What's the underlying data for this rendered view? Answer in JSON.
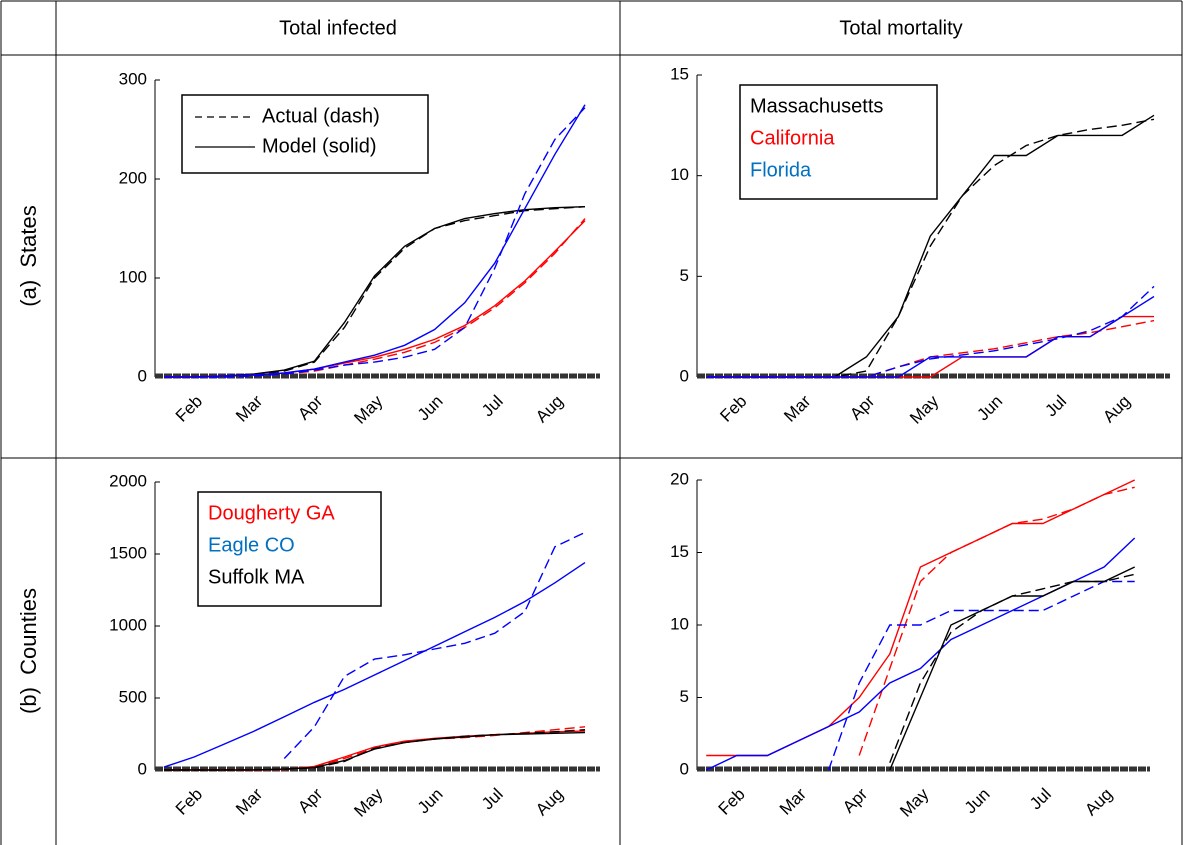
{
  "header": [
    "Total infected",
    "Total mortality"
  ],
  "rows": [
    "(a)  States",
    "(b)  Counties"
  ],
  "chart_data": [
    {
      "type": "line",
      "legend_loc": "upper left",
      "categories": [
        null,
        "Feb",
        null,
        "Mar",
        null,
        "Apr",
        null,
        "May",
        null,
        "Jun",
        null,
        "Jul",
        null,
        "Aug",
        null
      ],
      "ylim": [
        0,
        300
      ],
      "yticks": [
        0,
        100,
        200,
        300
      ],
      "legend": [
        {
          "label": "Actual (dash)",
          "dash": true
        },
        {
          "label": "Model (solid)",
          "dash": false
        }
      ],
      "series": [
        {
          "color": "#000000",
          "dash": true,
          "values": [
            0,
            0,
            1,
            2,
            6,
            15,
            50,
            100,
            130,
            150,
            158,
            163,
            168,
            170,
            172
          ]
        },
        {
          "color": "#000000",
          "dash": false,
          "values": [
            0,
            0,
            1,
            3,
            7,
            16,
            55,
            102,
            132,
            150,
            160,
            165,
            169,
            171,
            172
          ]
        },
        {
          "color": "#ff0000",
          "dash": true,
          "values": [
            0,
            0,
            0,
            1,
            3,
            6,
            12,
            18,
            25,
            35,
            50,
            70,
            95,
            125,
            160
          ]
        },
        {
          "color": "#ff0000",
          "dash": false,
          "values": [
            0,
            0,
            1,
            2,
            4,
            8,
            14,
            20,
            28,
            38,
            52,
            72,
            97,
            127,
            158
          ]
        },
        {
          "color": "#0000ff",
          "dash": true,
          "values": [
            0,
            0,
            0,
            1,
            3,
            7,
            12,
            15,
            20,
            28,
            50,
            110,
            185,
            240,
            272
          ]
        },
        {
          "color": "#0000ff",
          "dash": false,
          "values": [
            0,
            0,
            1,
            2,
            4,
            8,
            15,
            22,
            32,
            48,
            75,
            115,
            170,
            225,
            275
          ]
        }
      ]
    },
    {
      "type": "line",
      "legend_loc": "upper left",
      "categories": [
        null,
        "Feb",
        null,
        "Mar",
        null,
        "Apr",
        null,
        "May",
        null,
        "Jun",
        null,
        "Jul",
        null,
        "Aug",
        null
      ],
      "ylim": [
        0,
        15
      ],
      "yticks": [
        0,
        5,
        10,
        15
      ],
      "legend": [
        {
          "label": "Massachusetts",
          "color": "#000000"
        },
        {
          "label": "California",
          "color": "#ff0000"
        },
        {
          "label": "Florida",
          "color": "#0070c0"
        }
      ],
      "series": [
        {
          "color": "#000000",
          "dash": true,
          "values": [
            0,
            0,
            0,
            0,
            0,
            0.3,
            3,
            6.5,
            9,
            10.5,
            11.5,
            12,
            12.3,
            12.5,
            12.8
          ]
        },
        {
          "color": "#000000",
          "dash": false,
          "values": [
            0,
            0,
            0,
            0,
            0,
            1,
            3,
            7,
            9,
            11,
            11,
            12,
            12,
            12,
            13
          ]
        },
        {
          "color": "#ff0000",
          "dash": true,
          "values": [
            0,
            0,
            0,
            0,
            0,
            0,
            0.5,
            1,
            1.2,
            1.4,
            1.7,
            2,
            2.2,
            2.5,
            2.8
          ]
        },
        {
          "color": "#ff0000",
          "dash": false,
          "values": [
            0,
            0,
            0,
            0,
            0,
            0,
            0,
            0,
            1,
            1,
            1,
            2,
            2,
            3,
            3
          ]
        },
        {
          "color": "#0000ff",
          "dash": true,
          "values": [
            0,
            0,
            0,
            0,
            0,
            0,
            0.5,
            0.9,
            1.1,
            1.3,
            1.6,
            1.9,
            2.3,
            3,
            4.5
          ]
        },
        {
          "color": "#0000ff",
          "dash": false,
          "values": [
            0,
            0,
            0,
            0,
            0,
            0,
            0,
            1,
            1,
            1,
            1,
            2,
            2,
            3,
            4
          ]
        }
      ]
    },
    {
      "type": "line",
      "legend_loc": "upper left",
      "categories": [
        null,
        "Feb",
        null,
        "Mar",
        null,
        "Apr",
        null,
        "May",
        null,
        "Jun",
        null,
        "Jul",
        null,
        "Aug",
        null
      ],
      "ylim": [
        0,
        2000
      ],
      "yticks": [
        0,
        500,
        1000,
        1500,
        2000
      ],
      "legend": [
        {
          "label": "Dougherty GA",
          "color": "#ff0000"
        },
        {
          "label": "Eagle CO",
          "color": "#0070c0"
        },
        {
          "label": "Suffolk MA",
          "color": "#000000"
        }
      ],
      "series": [
        {
          "color": "#ff0000",
          "dash": true,
          "values": [
            0,
            0,
            0,
            0,
            3,
            20,
            80,
            150,
            200,
            215,
            225,
            240,
            260,
            280,
            300
          ]
        },
        {
          "color": "#ff0000",
          "dash": false,
          "values": [
            0,
            0,
            0,
            0,
            4,
            25,
            90,
            160,
            200,
            220,
            235,
            245,
            255,
            265,
            270
          ]
        },
        {
          "color": "#0000ff",
          "dash": true,
          "values": [
            null,
            null,
            null,
            null,
            80,
            300,
            650,
            770,
            800,
            840,
            880,
            950,
            1100,
            1550,
            1650
          ]
        },
        {
          "color": "#0000ff",
          "dash": false,
          "values": [
            20,
            90,
            180,
            270,
            370,
            470,
            560,
            660,
            760,
            860,
            960,
            1060,
            1170,
            1300,
            1440
          ]
        },
        {
          "color": "#000000",
          "dash": true,
          "values": [
            0,
            0,
            0,
            1,
            5,
            15,
            60,
            150,
            190,
            215,
            235,
            245,
            255,
            265,
            280
          ]
        },
        {
          "color": "#000000",
          "dash": false,
          "values": [
            0,
            0,
            0,
            1,
            6,
            18,
            65,
            145,
            190,
            215,
            230,
            245,
            250,
            255,
            260
          ]
        }
      ]
    },
    {
      "type": "line",
      "legend_loc": "none",
      "categories": [
        null,
        "Feb",
        null,
        "Mar",
        null,
        "Apr",
        null,
        "May",
        null,
        "Jun",
        null,
        "Jul",
        null,
        "Aug",
        null
      ],
      "ylim": [
        0,
        20
      ],
      "yticks": [
        0,
        5,
        10,
        15,
        20
      ],
      "series": [
        {
          "color": "#ff0000",
          "dash": true,
          "values": [
            null,
            null,
            null,
            null,
            null,
            1,
            7,
            13,
            15,
            16,
            17,
            17.3,
            18,
            19,
            19.5
          ]
        },
        {
          "color": "#ff0000",
          "dash": false,
          "values": [
            1,
            1,
            1,
            2,
            3,
            5,
            8,
            14,
            15,
            16,
            17,
            17,
            18,
            19,
            20
          ]
        },
        {
          "color": "#0000ff",
          "dash": true,
          "values": [
            null,
            null,
            null,
            null,
            0,
            6,
            10,
            10,
            11,
            11,
            11,
            11,
            12,
            13,
            13
          ]
        },
        {
          "color": "#0000ff",
          "dash": false,
          "values": [
            0,
            1,
            1,
            2,
            3,
            4,
            6,
            7,
            9,
            10,
            11,
            12,
            13,
            14,
            16
          ]
        },
        {
          "color": "#000000",
          "dash": true,
          "values": [
            null,
            null,
            null,
            null,
            null,
            null,
            0.5,
            6,
            9.5,
            11,
            12,
            12.5,
            13,
            13,
            13.5
          ]
        },
        {
          "color": "#000000",
          "dash": false,
          "values": [
            null,
            null,
            null,
            null,
            null,
            null,
            0,
            5,
            10,
            11,
            12,
            12,
            13,
            13,
            14
          ]
        }
      ]
    }
  ]
}
